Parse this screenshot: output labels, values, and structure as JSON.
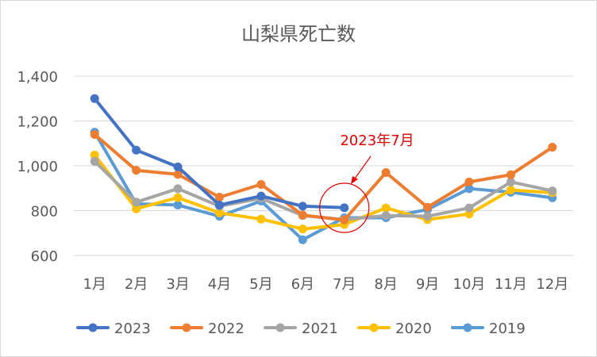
{
  "chart_data": {
    "type": "line",
    "title": "山梨県死亡数",
    "categories": [
      "1月",
      "2月",
      "3月",
      "4月",
      "5月",
      "6月",
      "7月",
      "8月",
      "9月",
      "10月",
      "11月",
      "12月"
    ],
    "yticks": [
      "600",
      "800",
      "1,000",
      "1,200",
      "1,400"
    ],
    "ylim": [
      600,
      1400
    ],
    "grid": true,
    "legend_position": "bottom",
    "series": [
      {
        "name": "2023",
        "color": "#4472c4",
        "values": [
          1300,
          1070,
          995,
          825,
          865,
          820,
          813,
          null,
          null,
          null,
          null,
          null
        ]
      },
      {
        "name": "2022",
        "color": "#ed7d31",
        "values": [
          1140,
          980,
          962,
          860,
          917,
          780,
          758,
          970,
          815,
          928,
          960,
          1083
        ]
      },
      {
        "name": "2021",
        "color": "#a5a5a5",
        "values": [
          1020,
          838,
          898,
          820,
          855,
          778,
          760,
          778,
          775,
          812,
          928,
          888
        ]
      },
      {
        "name": "2020",
        "color": "#ffc000",
        "values": [
          1048,
          808,
          858,
          790,
          762,
          718,
          738,
          812,
          760,
          785,
          892,
          880
        ]
      },
      {
        "name": "2019",
        "color": "#5b9bd5",
        "values": [
          1150,
          830,
          825,
          775,
          843,
          670,
          768,
          768,
          805,
          898,
          882,
          857
        ]
      }
    ],
    "annotation": {
      "text": "2023年7月",
      "color": "#e00000",
      "category_index": 6
    }
  }
}
